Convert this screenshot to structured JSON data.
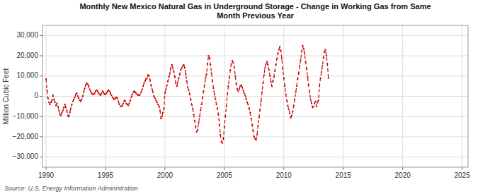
{
  "chart_data": {
    "type": "line",
    "title": "Monthly New Mexico Natural Gas in Underground Storage - Change in Working Gas from Same\nMonth Previous Year",
    "ylabel": "Million Cubic Feet",
    "annotations": [
      "Source: U.S. Energy Information Administration"
    ],
    "color": "#cc0000",
    "marker": "square",
    "line_style": "dashed",
    "grid": true,
    "xlim": [
      1989.7,
      2025.5
    ],
    "ylim": [
      -35000,
      35000
    ],
    "xticks": [
      1990,
      1995,
      2000,
      2005,
      2010,
      2015,
      2020,
      2025
    ],
    "yticks": [
      {
        "value": -30000,
        "label": "−30,000"
      },
      {
        "value": -20000,
        "label": "−20,000"
      },
      {
        "value": -10000,
        "label": "−10,000"
      },
      0,
      {
        "value": 10000,
        "label": "10,000"
      },
      {
        "value": 20000,
        "label": "20,000"
      },
      {
        "value": 30000,
        "label": "30,000"
      }
    ],
    "x": [
      1990,
      1990.083333,
      1990.166667,
      1990.25,
      1990.333333,
      1990.416667,
      1990.5,
      1990.583333,
      1990.666667,
      1990.75,
      1990.833333,
      1990.916667,
      1991,
      1991.083333,
      1991.166667,
      1991.25,
      1991.333333,
      1991.416667,
      1991.5,
      1991.583333,
      1991.666667,
      1991.75,
      1991.833333,
      1991.916667,
      1992,
      1992.083333,
      1992.166667,
      1992.25,
      1992.333333,
      1992.416667,
      1992.5,
      1992.583333,
      1992.666667,
      1992.75,
      1992.833333,
      1992.916667,
      1993,
      1993.083333,
      1993.166667,
      1993.25,
      1993.333333,
      1993.416667,
      1993.5,
      1993.583333,
      1993.666667,
      1993.75,
      1993.833333,
      1993.916667,
      1994,
      1994.083333,
      1994.166667,
      1994.25,
      1994.333333,
      1994.416667,
      1994.5,
      1994.583333,
      1994.666667,
      1994.75,
      1994.833333,
      1994.916667,
      1995,
      1995.083333,
      1995.166667,
      1995.25,
      1995.333333,
      1995.416667,
      1995.5,
      1995.583333,
      1995.666667,
      1995.75,
      1995.833333,
      1995.916667,
      1996,
      1996.083333,
      1996.166667,
      1996.25,
      1996.333333,
      1996.416667,
      1996.5,
      1996.583333,
      1996.666667,
      1996.75,
      1996.833333,
      1996.916667,
      1997,
      1997.083333,
      1997.166667,
      1997.25,
      1997.333333,
      1997.416667,
      1997.5,
      1997.583333,
      1997.666667,
      1997.75,
      1997.833333,
      1997.916667,
      1998,
      1998.083333,
      1998.166667,
      1998.25,
      1998.333333,
      1998.416667,
      1998.5,
      1998.583333,
      1998.666667,
      1998.75,
      1998.833333,
      1998.916667,
      1999,
      1999.083333,
      1999.166667,
      1999.25,
      1999.333333,
      1999.416667,
      1999.5,
      1999.583333,
      1999.666667,
      1999.75,
      1999.833333,
      1999.916667,
      2000,
      2000.083333,
      2000.166667,
      2000.25,
      2000.333333,
      2000.416667,
      2000.5,
      2000.583333,
      2000.666667,
      2000.75,
      2000.833333,
      2000.916667,
      2001,
      2001.083333,
      2001.166667,
      2001.25,
      2001.333333,
      2001.416667,
      2001.5,
      2001.583333,
      2001.666667,
      2001.75,
      2001.833333,
      2001.916667,
      2002,
      2002.083333,
      2002.166667,
      2002.25,
      2002.333333,
      2002.416667,
      2002.5,
      2002.583333,
      2002.666667,
      2002.75,
      2002.833333,
      2002.916667,
      2003,
      2003.083333,
      2003.166667,
      2003.25,
      2003.333333,
      2003.416667,
      2003.5,
      2003.583333,
      2003.666667,
      2003.75,
      2003.833333,
      2003.916667,
      2004,
      2004.083333,
      2004.166667,
      2004.25,
      2004.333333,
      2004.416667,
      2004.5,
      2004.583333,
      2004.666667,
      2004.75,
      2004.833333,
      2004.916667,
      2005,
      2005.083333,
      2005.166667,
      2005.25,
      2005.333333,
      2005.416667,
      2005.5,
      2005.583333,
      2005.666667,
      2005.75,
      2005.833333,
      2005.916667,
      2006,
      2006.083333,
      2006.166667,
      2006.25,
      2006.333333,
      2006.416667,
      2006.5,
      2006.583333,
      2006.666667,
      2006.75,
      2006.833333,
      2006.916667,
      2007,
      2007.083333,
      2007.166667,
      2007.25,
      2007.333333,
      2007.416667,
      2007.5,
      2007.583333,
      2007.666667,
      2007.75,
      2007.833333,
      2007.916667,
      2008,
      2008.083333,
      2008.166667,
      2008.25,
      2008.333333,
      2008.416667,
      2008.5,
      2008.583333,
      2008.666667,
      2008.75,
      2008.833333,
      2008.916667,
      2009,
      2009.083333,
      2009.166667,
      2009.25,
      2009.333333,
      2009.416667,
      2009.5,
      2009.583333,
      2009.666667,
      2009.75,
      2009.833333,
      2009.916667,
      2010,
      2010.083333,
      2010.166667,
      2010.25,
      2010.333333,
      2010.416667,
      2010.5,
      2010.583333,
      2010.666667,
      2010.75,
      2010.833333,
      2010.916667,
      2011,
      2011.083333,
      2011.166667,
      2011.25,
      2011.333333,
      2011.416667,
      2011.5,
      2011.583333,
      2011.666667,
      2011.75,
      2011.833333,
      2011.916667,
      2012,
      2012.083333,
      2012.166667,
      2012.25,
      2012.333333,
      2012.416667,
      2012.5,
      2012.583333,
      2012.666667,
      2012.75,
      2012.833333,
      2012.916667,
      2013,
      2013.083333,
      2013.166667,
      2013.25,
      2013.333333,
      2013.416667,
      2013.5,
      2013.583333,
      2013.666667,
      2013.75
    ],
    "values": [
      8500,
      3000,
      -1000,
      -3000,
      -4000,
      -3000,
      -2000,
      500,
      -1500,
      -3000,
      -4500,
      -3500,
      -5000,
      -7000,
      -9000,
      -9500,
      -8000,
      -7000,
      -5500,
      -4000,
      -5500,
      -7000,
      -9500,
      -10000,
      -8000,
      -6000,
      -4000,
      -2500,
      -1500,
      -500,
      1000,
      1500,
      0,
      -1000,
      -2000,
      -2500,
      -1500,
      0,
      2000,
      4000,
      5500,
      6500,
      6000,
      5000,
      3500,
      2500,
      1500,
      1000,
      1000,
      1500,
      2500,
      3000,
      2500,
      1500,
      1000,
      500,
      1500,
      2500,
      2000,
      1000,
      1000,
      1500,
      2500,
      3000,
      2500,
      1500,
      500,
      -500,
      -1000,
      -1500,
      -1000,
      -500,
      -1000,
      -2500,
      -4000,
      -5000,
      -5000,
      -4500,
      -3500,
      -2000,
      -2500,
      -3500,
      -4000,
      -4500,
      -3500,
      -2000,
      -500,
      1000,
      2000,
      2500,
      2000,
      1500,
      1000,
      500,
      500,
      1000,
      2000,
      3500,
      5000,
      6500,
      7500,
      8500,
      9000,
      10500,
      10000,
      8000,
      5500,
      3500,
      2000,
      0,
      -1000,
      -2000,
      -3000,
      -4000,
      -5000,
      -7000,
      -11000,
      -10000,
      -8000,
      -6000,
      1500,
      3500,
      5500,
      7500,
      9500,
      11500,
      14000,
      15500,
      14000,
      12000,
      9500,
      6500,
      5000,
      7000,
      9000,
      11000,
      13000,
      14000,
      15000,
      15500,
      14000,
      11000,
      7500,
      4500,
      3000,
      1000,
      -1500,
      -4000,
      -6000,
      -9000,
      -12000,
      -15000,
      -17500,
      -16500,
      -13000,
      -10000,
      -7000,
      -4000,
      -1000,
      2500,
      5500,
      9000,
      11000,
      16000,
      20000,
      19000,
      15500,
      11500,
      7500,
      4000,
      1000,
      -1500,
      -4000,
      -6000,
      -9000,
      -14000,
      -19000,
      -22500,
      -23000,
      -21000,
      -15000,
      -10000,
      -5000,
      1000,
      5000,
      9000,
      13000,
      16000,
      17500,
      16500,
      14000,
      10000,
      6000,
      3500,
      2500,
      3500,
      5000,
      5500,
      4500,
      3000,
      1500,
      500,
      -1500,
      -3000,
      -4000,
      -6000,
      -8000,
      -11000,
      -14000,
      -17000,
      -20000,
      -21000,
      -21500,
      -19000,
      -14500,
      -10500,
      -6500,
      -2500,
      2000,
      6500,
      10500,
      14000,
      16000,
      17000,
      15500,
      13000,
      10000,
      7000,
      5000,
      7500,
      9500,
      12500,
      15500,
      18500,
      21000,
      23000,
      24500,
      22500,
      18500,
      13500,
      9000,
      5000,
      1000,
      -2000,
      -4500,
      -6500,
      -8500,
      -10500,
      -9500,
      -7500,
      -4500,
      -1500,
      2000,
      5000,
      8500,
      11500,
      15000,
      18000,
      22000,
      25000,
      23500,
      21000,
      17000,
      13500,
      9500,
      5500,
      2000,
      -1500,
      -3500,
      -5500,
      -5000,
      -3500,
      -2500,
      -5000,
      -3000,
      -2000,
      5000,
      9000,
      12000,
      15000,
      19000,
      22000,
      23000,
      20000,
      16000,
      9000
    ]
  }
}
